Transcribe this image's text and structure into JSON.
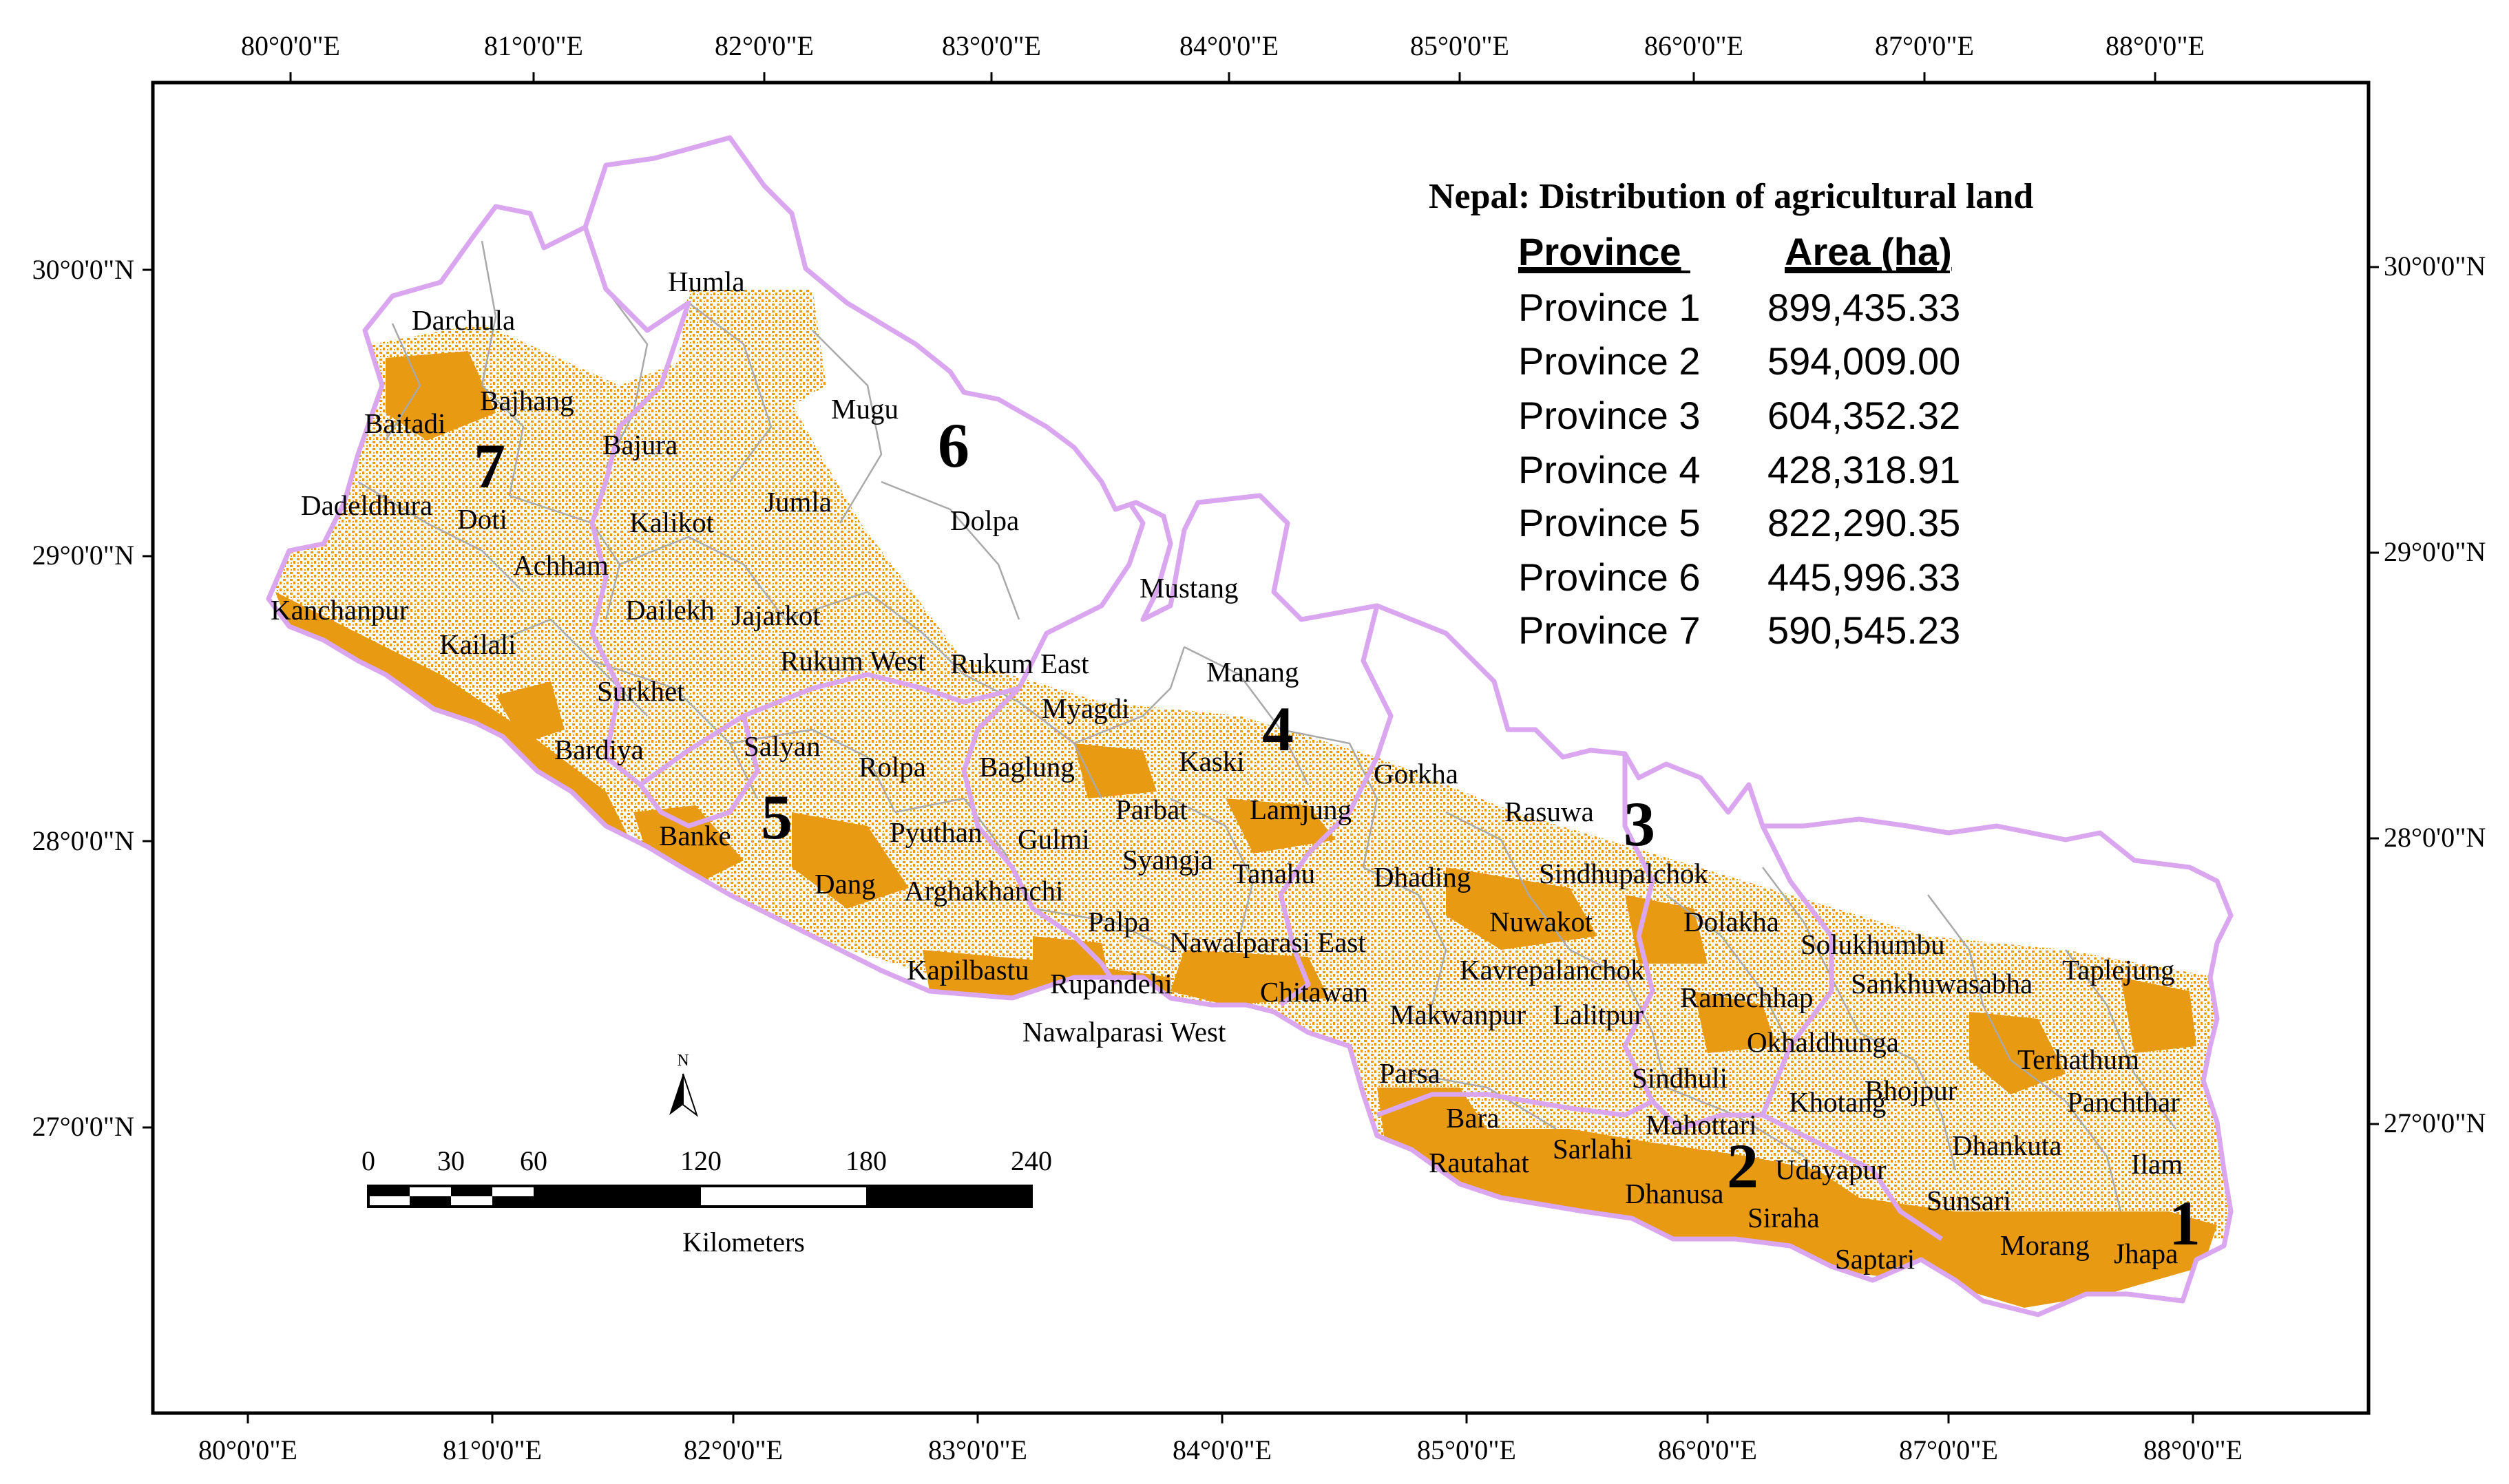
{
  "legend": {
    "title": "Nepal: Distribution of agricultural land",
    "col_province": "Province",
    "col_area": "Area (ha)",
    "rows": [
      {
        "province": "Province 1",
        "area": "899,435.33"
      },
      {
        "province": "Province 2",
        "area": "594,009.00"
      },
      {
        "province": "Province 3",
        "area": "604,352.32"
      },
      {
        "province": "Province 4",
        "area": "428,318.91"
      },
      {
        "province": "Province 5",
        "area": "822,290.35"
      },
      {
        "province": "Province 6",
        "area": "445,996.33"
      },
      {
        "province": "Province 7",
        "area": "590,545.23"
      }
    ]
  },
  "axes": {
    "lon_labels": [
      "80°0'0\"E",
      "81°0'0\"E",
      "82°0'0\"E",
      "83°0'0\"E",
      "84°0'0\"E",
      "85°0'0\"E",
      "86°0'0\"E",
      "87°0'0\"E",
      "88°0'0\"E"
    ],
    "lat_labels": [
      "30°0'0\"N",
      "29°0'0\"N",
      "28°0'0\"N",
      "27°0'0\"N"
    ]
  },
  "north_arrow": "N",
  "scale_bar": {
    "ticks": [
      "0",
      "30",
      "60",
      "120",
      "180",
      "240"
    ],
    "unit": "Kilometers"
  },
  "province_numbers": [
    "1",
    "2",
    "3",
    "4",
    "5",
    "6",
    "7"
  ],
  "districts": [
    "Humla",
    "Darchula",
    "Bajhang",
    "Baitadi",
    "Bajura",
    "Mugu",
    "Dadeldhura",
    "Doti",
    "Kalikot",
    "Jumla",
    "Dolpa",
    "Achham",
    "Kanchanpur",
    "Dailekh",
    "Jajarkot",
    "Kailali",
    "Mustang",
    "Rukum West",
    "Rukum East",
    "Manang",
    "Surkhet",
    "Myagdi",
    "Bardiya",
    "Salyan",
    "Rolpa",
    "Baglung",
    "Kaski",
    "Gorkha",
    "Parbat",
    "Lamjung",
    "Rasuwa",
    "Banke",
    "Pyuthan",
    "Gulmi",
    "Syangja",
    "Dang",
    "Arghakhanchi",
    "Tanahu",
    "Dhading",
    "Sindhupalchok",
    "Palpa",
    "Nuwakot",
    "Dolakha",
    "Nawalparasi East",
    "Solukhumbu",
    "Kapilbastu",
    "Rupandehi",
    "Kavrepalanchok",
    "Sankhuwasabha",
    "Taplejung",
    "Chitawan",
    "Ramechhap",
    "Makwanpur",
    "Lalitpur",
    "Nawalparasi West",
    "Okhaldhunga",
    "Parsa",
    "Terhathum",
    "Sindhuli",
    "Bhojpur",
    "Bara",
    "Khotang",
    "Mahottari",
    "Panchthar",
    "Rautahat",
    "Sarlahi",
    "Dhankuta",
    "Udayapur",
    "Ilam",
    "Dhanusa",
    "Sunsari",
    "Siraha",
    "Morang",
    "Jhapa",
    "Saptari"
  ],
  "colors": {
    "agricultural": "#e89a12",
    "province_border": "#d9a6ef",
    "district_border": "#a9a9a9",
    "frame": "#000000"
  }
}
